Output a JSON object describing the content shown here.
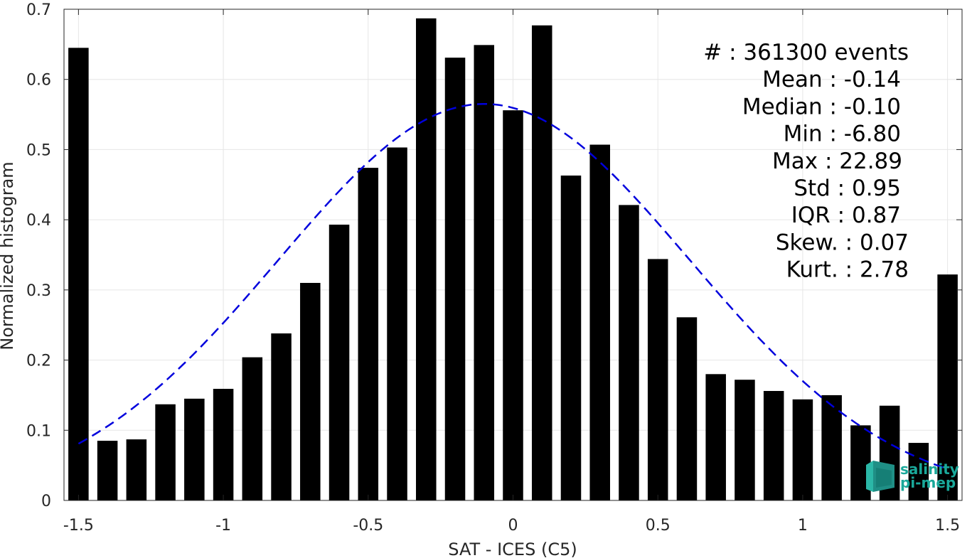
{
  "chart_data": {
    "type": "bar",
    "xlabel": "SAT - ICES (C5)",
    "ylabel": "Normalized histogram",
    "xlim": [
      -1.55,
      1.55
    ],
    "ylim": [
      0,
      0.7
    ],
    "xticks": [
      -1.5,
      -1,
      -0.5,
      0,
      0.5,
      1,
      1.5
    ],
    "xtick_labels": [
      "-1.5",
      "-1",
      "-0.5",
      "0",
      "0.5",
      "1",
      "1.5"
    ],
    "yticks": [
      0,
      0.1,
      0.2,
      0.3,
      0.4,
      0.5,
      0.6,
      0.7
    ],
    "ytick_labels": [
      "0",
      "0.1",
      "0.2",
      "0.3",
      "0.4",
      "0.5",
      "0.6",
      "0.7"
    ],
    "grid": true,
    "bar_width": 0.07,
    "bar_color": "#000000",
    "bars": {
      "x": [
        -1.5,
        -1.4,
        -1.3,
        -1.2,
        -1.1,
        -1.0,
        -0.9,
        -0.8,
        -0.7,
        -0.6,
        -0.5,
        -0.4,
        -0.3,
        -0.2,
        -0.1,
        0.0,
        0.1,
        0.2,
        0.3,
        0.4,
        0.5,
        0.6,
        0.7,
        0.8,
        0.9,
        1.0,
        1.1,
        1.2,
        1.3,
        1.4,
        1.5
      ],
      "values": [
        0.645,
        0.085,
        0.087,
        0.137,
        0.145,
        0.159,
        0.204,
        0.238,
        0.31,
        0.393,
        0.474,
        0.503,
        0.687,
        0.631,
        0.649,
        0.556,
        0.677,
        0.463,
        0.507,
        0.421,
        0.344,
        0.261,
        0.18,
        0.172,
        0.156,
        0.144,
        0.15,
        0.107,
        0.135,
        0.082,
        0.322
      ]
    },
    "fit": {
      "type": "gaussian",
      "style": "dashed",
      "color": "#0000dd",
      "mean": -0.1,
      "std": 0.71,
      "peak": 0.565,
      "x_range": [
        -1.5,
        1.5
      ]
    },
    "stats": [
      {
        "label": "#  ",
        "value": "361300 events"
      },
      {
        "label": "Mean",
        "value": "-0.14"
      },
      {
        "label": "Median",
        "value": "-0.10"
      },
      {
        "label": "Min",
        "value": "-6.80"
      },
      {
        "label": "Max",
        "value": "22.89"
      },
      {
        "label": "Std",
        "value": "0.95"
      },
      {
        "label": "IQR",
        "value": "0.87"
      },
      {
        "label": "Skew.",
        "value": "0.07"
      },
      {
        "label": "Kurt.",
        "value": "2.78"
      }
    ]
  },
  "logo": {
    "line1": "salinity",
    "line2": "pi-mep",
    "color": "#1aa89a",
    "icon": "cube-logo-icon"
  }
}
